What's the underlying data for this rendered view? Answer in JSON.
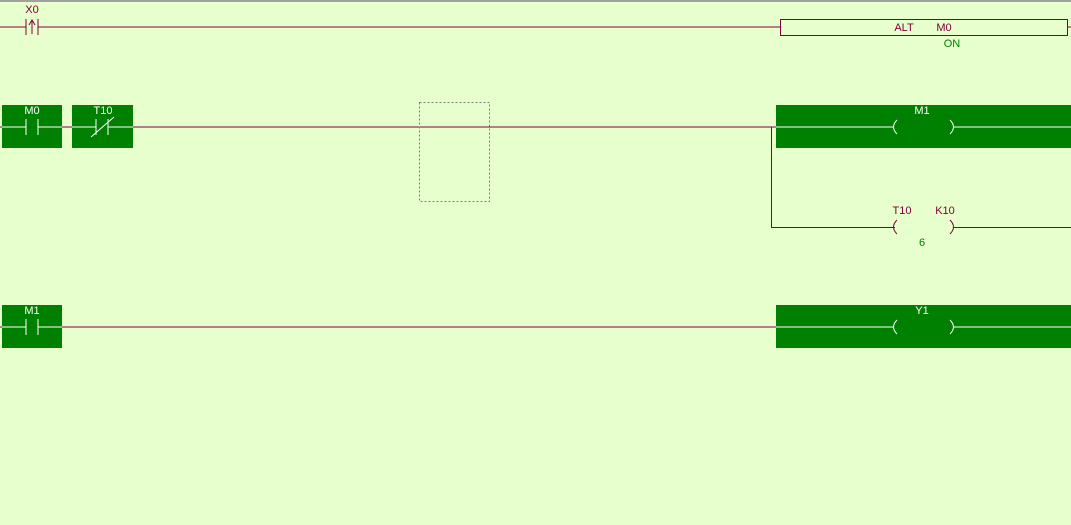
{
  "colors": {
    "background": "#e6ffcc",
    "energized": "#008000",
    "wire": "#800040",
    "monitor_value": "#008000"
  },
  "rungs": [
    {
      "contacts": [
        {
          "device": "X0",
          "type": "rising-edge-contact",
          "energized": false
        }
      ],
      "instruction": {
        "name": "ALT",
        "operand": "M0",
        "value": "ON"
      }
    },
    {
      "contacts": [
        {
          "device": "M0",
          "type": "normally-open-contact",
          "energized": true
        },
        {
          "device": "T10",
          "type": "normally-closed-contact",
          "energized": true
        }
      ],
      "coils": [
        {
          "device": "M1",
          "energized": true
        },
        {
          "device": "T10",
          "setting": "K10",
          "current_value": "6",
          "energized": false
        }
      ]
    },
    {
      "contacts": [
        {
          "device": "M1",
          "type": "normally-open-contact",
          "energized": true
        }
      ],
      "coils": [
        {
          "device": "Y1",
          "energized": true
        }
      ]
    }
  ]
}
